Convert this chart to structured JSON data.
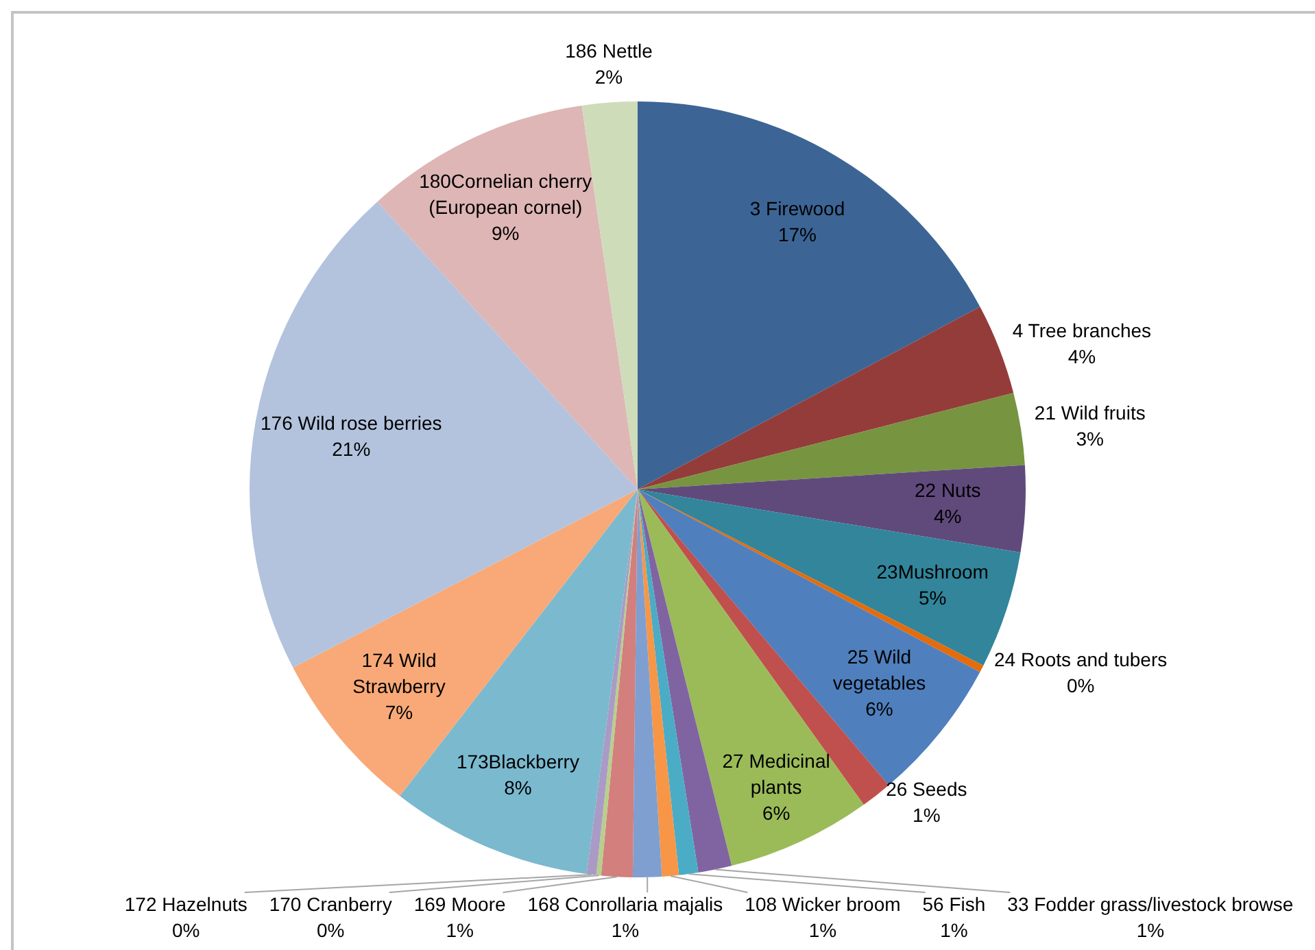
{
  "chart_data": {
    "type": "pie",
    "categories": [
      "3 Firewood",
      "4 Tree branches",
      "21 Wild fruits",
      "22 Nuts",
      "23Mushroom",
      "24 Roots and tubers",
      "25 Wild vegetables",
      "26 Seeds",
      "27 Medicinal plants",
      "33 Fodder grass/livestock browse",
      "56 Fish",
      "108 Wicker broom",
      "168 Conrollaria majalis",
      "169 Moore",
      "170 Cranberry",
      "172 Hazelnuts",
      "173Blackberry",
      "174 Wild Strawberry",
      "176 Wild rose berries",
      "180Cornelian cherry (European cornel)",
      "186 Nettle"
    ],
    "values": [
      17.2,
      3.8,
      3.0,
      3.6,
      4.9,
      0.3,
      6.0,
      1.3,
      6.0,
      1.4,
      0.8,
      0.7,
      1.2,
      1.3,
      0.2,
      0.4,
      8.4,
      6.9,
      20.9,
      9.4,
      2.3
    ],
    "colors": [
      "#3c6595",
      "#943c3a",
      "#779440",
      "#604a7c",
      "#32859b",
      "#e46c0a",
      "#4f7fbd",
      "#c0504d",
      "#9bbb59",
      "#8064a2",
      "#4bacc6",
      "#f79646",
      "#7f9fd0",
      "#d27f7d",
      "#b8cf8c",
      "#a99bc5",
      "#7bb9cf",
      "#f8a977",
      "#b3c3de",
      "#deb6b5",
      "#cfdcb9"
    ],
    "value_labels": [
      "17%",
      "4%",
      "3%",
      "4%",
      "5%",
      "0%",
      "6%",
      "1%",
      "6%",
      "1%",
      "1%",
      "1%",
      "1%",
      "1%",
      "0%",
      "0%",
      "8%",
      "7%",
      "21%",
      "9%",
      "2%"
    ]
  }
}
